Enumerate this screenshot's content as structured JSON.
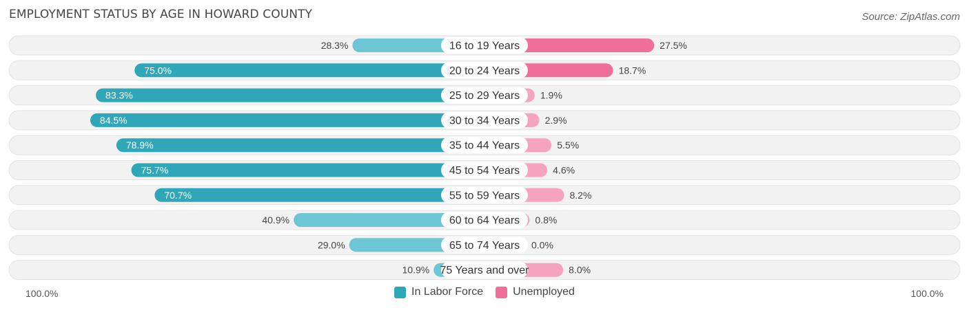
{
  "title": "EMPLOYMENT STATUS BY AGE IN HOWARD COUNTY",
  "source": "Source: ZipAtlas.com",
  "colors": {
    "labor": "#2fa7b9",
    "labor_light": "#6cc6d3",
    "unemployed": "#f06f9a",
    "unemployed_light": "#f6a3bf",
    "row_bg": "#f2f2f2",
    "row_border": "#e2e2e2"
  },
  "chart_data": {
    "type": "bar",
    "orientation": "diverging-horizontal",
    "categories": [
      "16 to 19 Years",
      "20 to 24 Years",
      "25 to 29 Years",
      "30 to 34 Years",
      "35 to 44 Years",
      "45 to 54 Years",
      "55 to 59 Years",
      "60 to 64 Years",
      "65 to 74 Years",
      "75 Years and over"
    ],
    "series": [
      {
        "name": "In Labor Force",
        "values": [
          28.3,
          75.0,
          83.3,
          84.5,
          78.9,
          75.7,
          70.7,
          40.9,
          29.0,
          10.9
        ],
        "labels": [
          "28.3%",
          "75.0%",
          "83.3%",
          "84.5%",
          "78.9%",
          "75.7%",
          "70.7%",
          "40.9%",
          "29.0%",
          "10.9%"
        ]
      },
      {
        "name": "Unemployed",
        "values": [
          27.5,
          18.7,
          1.9,
          2.9,
          5.5,
          4.6,
          8.2,
          0.8,
          0.0,
          8.0
        ],
        "labels": [
          "27.5%",
          "18.7%",
          "1.9%",
          "2.9%",
          "5.5%",
          "4.6%",
          "8.2%",
          "0.8%",
          "0.0%",
          "8.0%"
        ]
      }
    ],
    "xlim": [
      -100,
      100
    ],
    "axis_left_label": "100.0%",
    "axis_right_label": "100.0%",
    "legend": [
      "In Labor Force",
      "Unemployed"
    ]
  }
}
